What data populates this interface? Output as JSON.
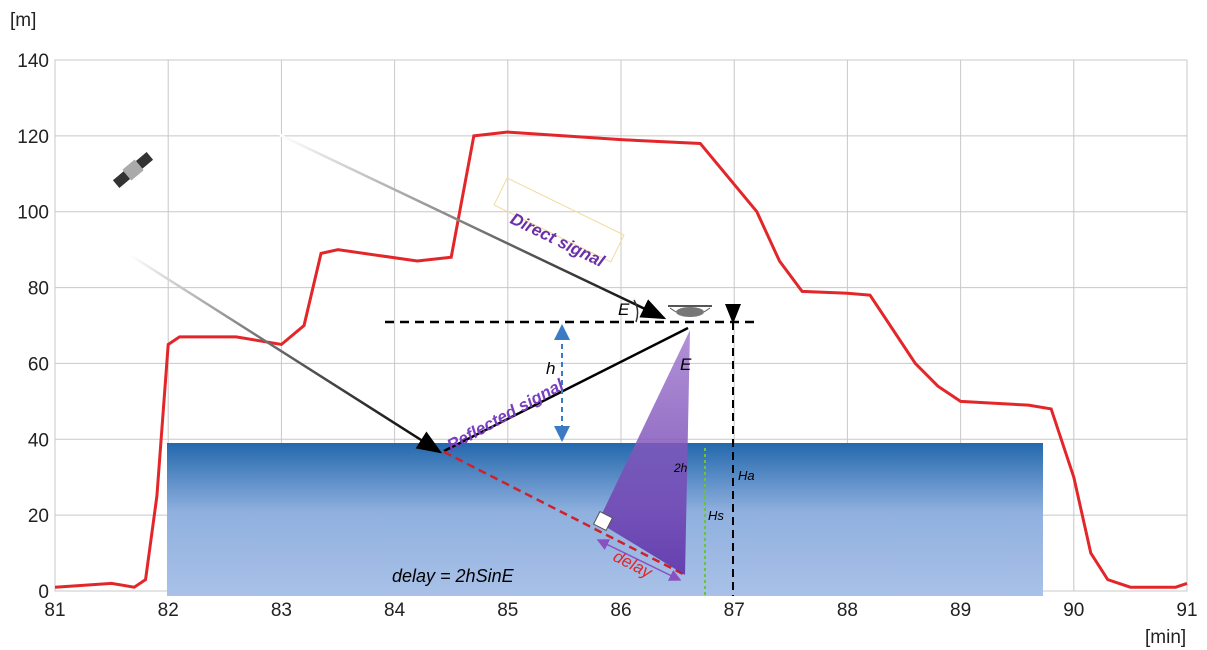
{
  "chart_data": {
    "type": "line",
    "y_label": "[m]",
    "x_label": "[min]",
    "xlim": [
      81,
      91
    ],
    "xticks": [
      81,
      82,
      83,
      84,
      85,
      86,
      87,
      88,
      89,
      90,
      91
    ],
    "ylim": [
      0,
      140
    ],
    "yticks": [
      0,
      20,
      40,
      60,
      80,
      100,
      120,
      140
    ],
    "grid": true,
    "series": [
      {
        "color": "#e3262a",
        "x": [
          81,
          81.5,
          81.7,
          81.8,
          81.9,
          82,
          82.1,
          82.6,
          83,
          83.2,
          83.35,
          83.5,
          84.2,
          84.5,
          84.7,
          85,
          86,
          86.7,
          87.2,
          87.4,
          87.6,
          88,
          88.2,
          88.6,
          88.8,
          89,
          89.6,
          89.8,
          90,
          90.15,
          90.3,
          90.5,
          90.9,
          91
        ],
        "values": [
          1,
          2,
          1,
          3,
          25,
          65,
          67,
          67,
          65,
          70,
          89,
          90,
          87,
          88,
          120,
          121,
          119,
          118,
          100,
          87,
          79,
          78.5,
          78,
          60,
          54,
          50,
          49,
          48,
          30,
          10,
          3,
          1,
          1,
          2
        ]
      }
    ],
    "annotations": {
      "direct": "Direct signal",
      "reflected": "Reflected signal",
      "angle_top": "E",
      "angle_drone": "E",
      "height": "h",
      "double_height": "2h",
      "drone_altitude": "Ha",
      "surface_altitude": "Hs",
      "delay": "delay",
      "formula": "delay = 2hSinE"
    }
  }
}
